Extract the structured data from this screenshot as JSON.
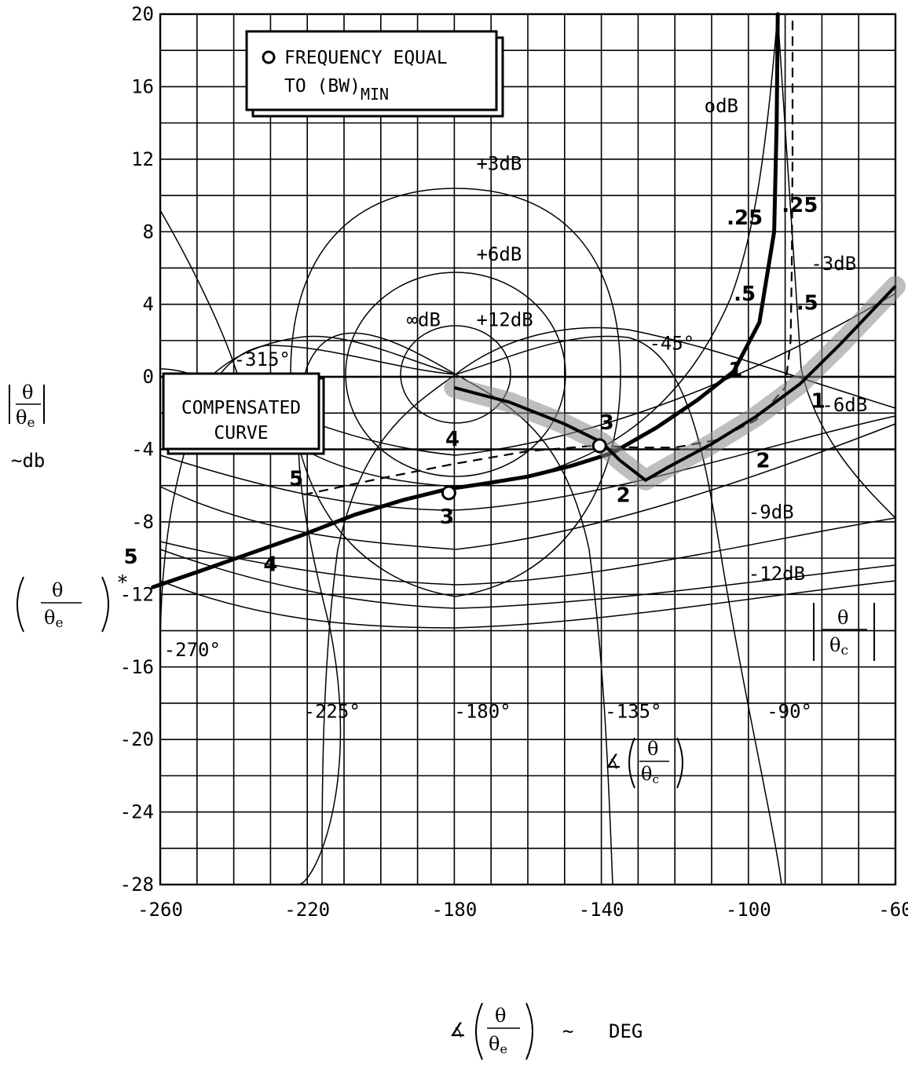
{
  "chart_data": {
    "type": "line",
    "x_ticks": [
      "-260",
      "-220",
      "-180",
      "-140",
      "-100",
      "-60"
    ],
    "y_ticks": [
      "20",
      "16",
      "12",
      "8",
      "4",
      "0",
      "-4",
      "-8",
      "-12",
      "-16",
      "-20",
      "-24",
      "-28"
    ],
    "xlim": [
      -260,
      -60
    ],
    "ylim": [
      -28,
      20
    ],
    "grid": true,
    "xlabel": "DEG",
    "ylabel": "~db",
    "legend": {
      "line1": "FREQUENCY EQUAL",
      "line2": "TO (BW)",
      "line2_sub": "MIN"
    },
    "annotation_box": {
      "line1": "COMPENSATED",
      "line2": "CURVE"
    },
    "magnitude_contours": [
      {
        "label": "odB"
      },
      {
        "label": "+3dB"
      },
      {
        "label": "+6dB"
      },
      {
        "label": "+12dB"
      },
      {
        "label": "∞dB"
      },
      {
        "label": "-3dB"
      },
      {
        "label": "-6dB"
      },
      {
        "label": "-9dB"
      },
      {
        "label": "-12dB"
      }
    ],
    "phase_contours": [
      {
        "label": "-315°"
      },
      {
        "label": "-45°"
      },
      {
        "label": "-270°"
      },
      {
        "label": "-225°"
      },
      {
        "label": "-180°"
      },
      {
        "label": "-135°"
      },
      {
        "label": "-90°"
      }
    ],
    "series": [
      {
        "name": "COMPENSATED CURVE",
        "style": "bold",
        "x": [
          -262,
          -249,
          -235,
          -221,
          -207,
          -194,
          -182,
          -172,
          -160,
          -148,
          -137,
          -125,
          -114,
          -104,
          -97,
          -93,
          -92.3,
          -92
        ],
        "y": [
          -11.6,
          -10.7,
          -9.7,
          -8.7,
          -7.6,
          -6.8,
          -6.2,
          -5.9,
          -5.5,
          -4.9,
          -4.2,
          -2.8,
          -1.3,
          0.3,
          3,
          8,
          14,
          20
        ]
      },
      {
        "name": "",
        "style": "dashed",
        "x": [
          -221,
          -200,
          -180,
          -160,
          -142,
          -130,
          -120,
          -109,
          -98,
          -90,
          -88.5,
          -88.2,
          -88,
          -88
        ],
        "y": [
          -6.5,
          -5.6,
          -4.8,
          -4.1,
          -3.8,
          -3.9,
          -3.9,
          -3.5,
          -2.4,
          -0.6,
          2,
          6,
          12,
          20
        ]
      },
      {
        "name": "",
        "style": "shaded",
        "x": [
          -180,
          -165,
          -150,
          -140,
          -135,
          -128,
          -122,
          -110,
          -98,
          -86,
          -75,
          -60
        ],
        "y": [
          -0.6,
          -1.4,
          -2.6,
          -3.6,
          -4.6,
          -5.7,
          -5.0,
          -3.7,
          -2.2,
          -0.4,
          1.8,
          5.0
        ]
      }
    ],
    "point_labels": [
      {
        "text": "1",
        "x": -103.5,
        "y": 0.0
      },
      {
        "text": "2",
        "x": -134.0,
        "y": -6.9
      },
      {
        "text": "3",
        "x": -138.5,
        "y": -2.9
      },
      {
        "text": "4",
        "x": -180.5,
        "y": -3.8
      },
      {
        "text": "5",
        "x": -223.0,
        "y": -6.0
      },
      {
        "text": "1",
        "x": -81.0,
        "y": -1.7
      },
      {
        "text": "2",
        "x": -96.0,
        "y": -5.0
      },
      {
        "text": "3",
        "x": -182.0,
        "y": -8.1
      },
      {
        "text": "4",
        "x": -230.0,
        "y": -10.7
      },
      {
        "text": "5",
        "x": -268.0,
        "y": -10.3
      },
      {
        "text": ".25",
        "x": -101.0,
        "y": 8.4
      },
      {
        "text": ".25",
        "x": -86.0,
        "y": 9.1
      },
      {
        "text": ".5",
        "x": -101.0,
        "y": 4.2
      },
      {
        "text": ".5",
        "x": -84.0,
        "y": 3.7
      }
    ],
    "markers": [
      {
        "x": -181.5,
        "y": -6.4
      },
      {
        "x": -140.5,
        "y": -3.8
      }
    ],
    "side_labels": {
      "left_top": "|θ/θe|",
      "left_bottom": "(θ/θe)*",
      "right": "|θ/θc|",
      "phase_label": "∡(θ/θc)",
      "x_title_symbol": "∡(θ/θe)",
      "x_title_dash": "~"
    }
  }
}
